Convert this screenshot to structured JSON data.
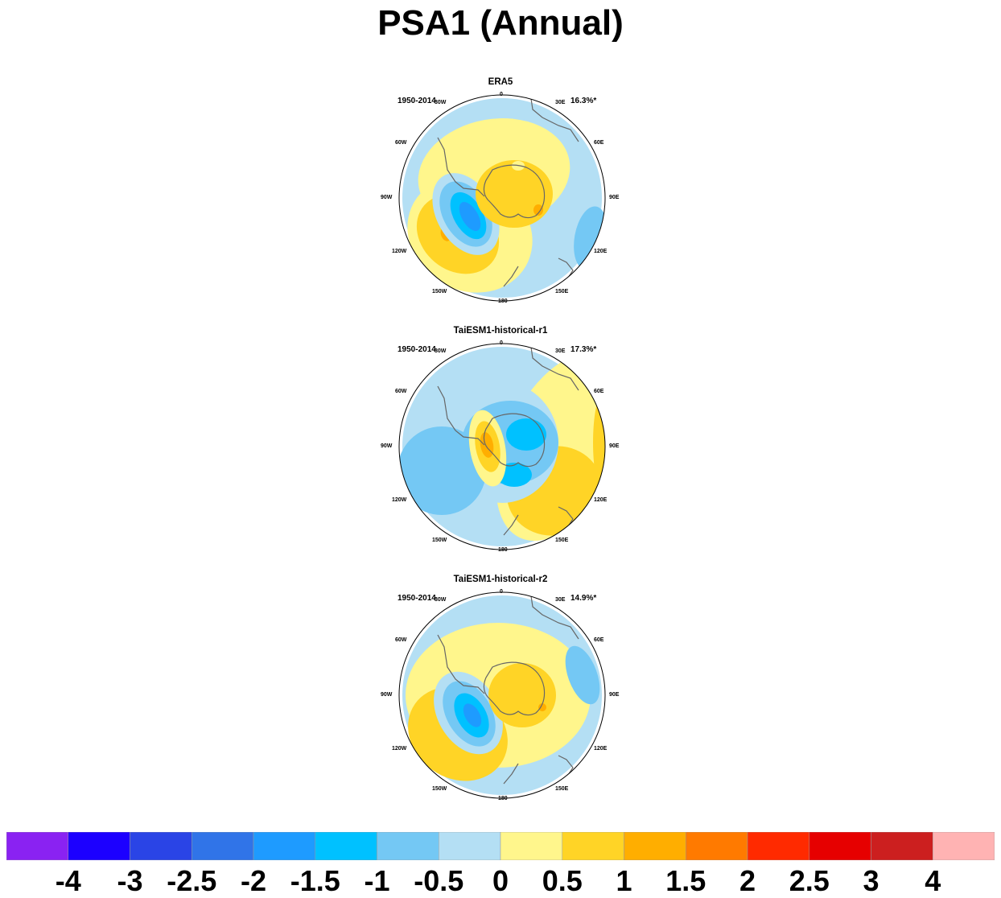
{
  "title": "PSA1 (Annual)",
  "panels": [
    {
      "title": "ERA5",
      "years": "1950-2014",
      "pct": "16.3%*"
    },
    {
      "title": "TaiESM1-historical-r1",
      "years": "1950-2014",
      "pct": "17.3%*"
    },
    {
      "title": "TaiESM1-historical-r2",
      "years": "1950-2014",
      "pct": "14.9%*"
    }
  ],
  "lon_labels": [
    "0",
    "30E",
    "60E",
    "90E",
    "120E",
    "150E",
    "180",
    "150W",
    "120W",
    "90W",
    "60W",
    "30W"
  ],
  "colorbar": {
    "colors": [
      "#8a22f2",
      "#1c00ff",
      "#2a44e6",
      "#3074e8",
      "#1e9bff",
      "#00c1ff",
      "#74c8f4",
      "#b4dff4",
      "#fff68c",
      "#ffd426",
      "#ffae00",
      "#ff7a00",
      "#ff2a00",
      "#e60000",
      "#cc1f1f",
      "#ffb3b3"
    ],
    "labels": [
      "-4",
      "-3",
      "-2.5",
      "-2",
      "-1.5",
      "-1",
      "-0.5",
      "0",
      "0.5",
      "1",
      "1.5",
      "2",
      "2.5",
      "3",
      "4"
    ]
  },
  "chart_data": {
    "type": "heatmap",
    "title": "PSA1 (Annual)",
    "projection": "south-polar-stereographic",
    "levels": [
      -4,
      -3,
      -2.5,
      -2,
      -1.5,
      -1,
      -0.5,
      0,
      0.5,
      1,
      1.5,
      2,
      2.5,
      3,
      4
    ],
    "panels": [
      {
        "name": "ERA5",
        "period": "1950-2014",
        "variance_explained": "16.3%*"
      },
      {
        "name": "TaiESM1-historical-r1",
        "period": "1950-2014",
        "variance_explained": "17.3%*"
      },
      {
        "name": "TaiESM1-historical-r2",
        "period": "1950-2014",
        "variance_explained": "14.9%*"
      }
    ]
  }
}
